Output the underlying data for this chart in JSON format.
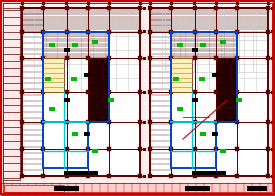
{
  "bg_outer": "#ffaaaa",
  "bg_inner": "#ffdddd",
  "dark_red": "#5a0000",
  "red": "#cc0000",
  "blue": "#0044cc",
  "cyan": "#00ccdd",
  "green": "#00bb00",
  "black": "#000000",
  "gray": "#aaaaaa",
  "lt_gray": "#cccccc",
  "white": "#ffffff",
  "figsize": [
    2.75,
    1.96
  ],
  "dpi": 100
}
